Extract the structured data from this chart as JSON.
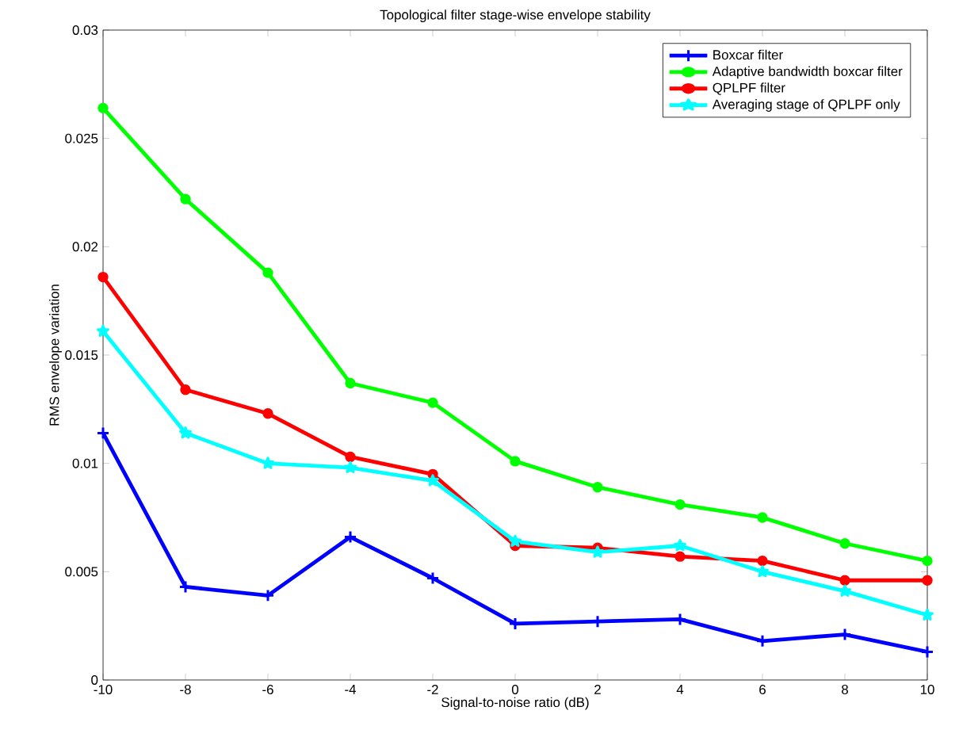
{
  "chart_data": {
    "type": "line",
    "title": "Topological filter stage-wise envelope stability",
    "xlabel": "Signal-to-noise ratio (dB)",
    "ylabel": "RMS envelope variation",
    "x": [
      -10,
      -8,
      -6,
      -4,
      -2,
      0,
      2,
      4,
      6,
      8,
      10
    ],
    "series": [
      {
        "name": "Boxcar filter",
        "color": "#0000ff",
        "marker": "cross",
        "values": [
          0.0114,
          0.0043,
          0.0039,
          0.0066,
          0.0047,
          0.0026,
          0.0027,
          0.0028,
          0.0018,
          0.0021,
          0.0013
        ]
      },
      {
        "name": "Adaptive bandwidth boxcar filter",
        "color": "#00ff00",
        "marker": "circle",
        "values": [
          0.0264,
          0.0222,
          0.0188,
          0.0137,
          0.0128,
          0.0101,
          0.0089,
          0.0081,
          0.0075,
          0.0063,
          0.0055
        ]
      },
      {
        "name": "QPLPF filter",
        "color": "#ff0000",
        "marker": "circle",
        "values": [
          0.0186,
          0.0134,
          0.0123,
          0.0103,
          0.0095,
          0.0062,
          0.0061,
          0.0057,
          0.0055,
          0.0046,
          0.0046
        ]
      },
      {
        "name": "Averaging stage of QPLPF only",
        "color": "#00ffff",
        "marker": "star",
        "values": [
          0.0161,
          0.0114,
          0.01,
          0.0098,
          0.0092,
          0.0064,
          0.0059,
          0.0062,
          0.005,
          0.0041,
          0.003
        ]
      }
    ],
    "xlim": [
      -10,
      10
    ],
    "ylim": [
      0,
      0.03
    ],
    "xticks": [
      -10,
      -8,
      -6,
      -4,
      -2,
      0,
      2,
      4,
      6,
      8,
      10
    ],
    "yticks": [
      0,
      0.005,
      0.01,
      0.015,
      0.02,
      0.025,
      0.03
    ],
    "grid": false,
    "legend": "top right",
    "line_style": "solid"
  }
}
